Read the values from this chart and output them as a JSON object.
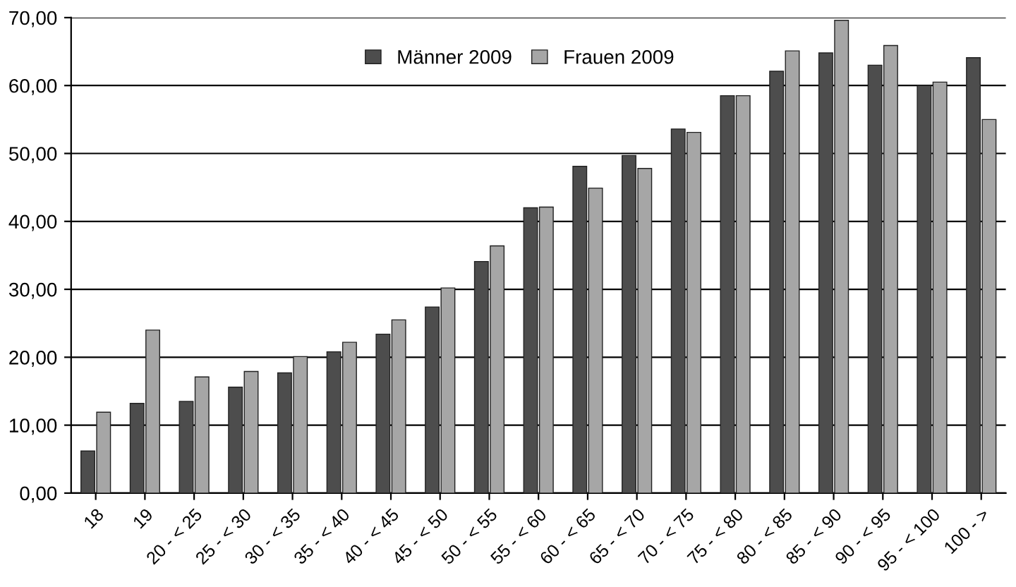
{
  "chart_data": {
    "type": "bar",
    "categories": [
      "18",
      "19",
      "20 - < 25",
      "25 - < 30",
      "30 - < 35",
      "35 - < 40",
      "40 - < 45",
      "45 - < 50",
      "50 - < 55",
      "55 - < 60",
      "60 - < 65",
      "65 - < 70",
      "70 - < 75",
      "75 - < 80",
      "80 - < 85",
      "85 - < 90",
      "90 - < 95",
      "95 - < 100",
      "100 - >"
    ],
    "series": [
      {
        "name": "Männer 2009",
        "color": "#4d4d4d",
        "values": [
          6.2,
          13.2,
          13.5,
          15.6,
          17.7,
          20.8,
          23.4,
          27.4,
          34.1,
          42.0,
          48.1,
          49.7,
          53.6,
          58.5,
          62.1,
          64.8,
          63.0,
          60.0,
          64.1
        ]
      },
      {
        "name": "Frauen 2009",
        "color": "#a6a6a6",
        "values": [
          11.9,
          24.0,
          17.1,
          17.9,
          20.1,
          22.2,
          25.5,
          30.2,
          36.4,
          42.1,
          44.9,
          47.8,
          53.1,
          58.5,
          65.1,
          69.6,
          65.9,
          60.5,
          55.0
        ]
      }
    ],
    "ylim": [
      0,
      70
    ],
    "yticks": [
      {
        "value": 0,
        "label": "0,00"
      },
      {
        "value": 10,
        "label": "10,00"
      },
      {
        "value": 20,
        "label": "20,00"
      },
      {
        "value": 30,
        "label": "30,00"
      },
      {
        "value": 40,
        "label": "40,00"
      },
      {
        "value": 50,
        "label": "50,00"
      },
      {
        "value": 60,
        "label": "60,00"
      },
      {
        "value": 70,
        "label": "70,00"
      }
    ],
    "grid": "y",
    "legend": "top"
  }
}
